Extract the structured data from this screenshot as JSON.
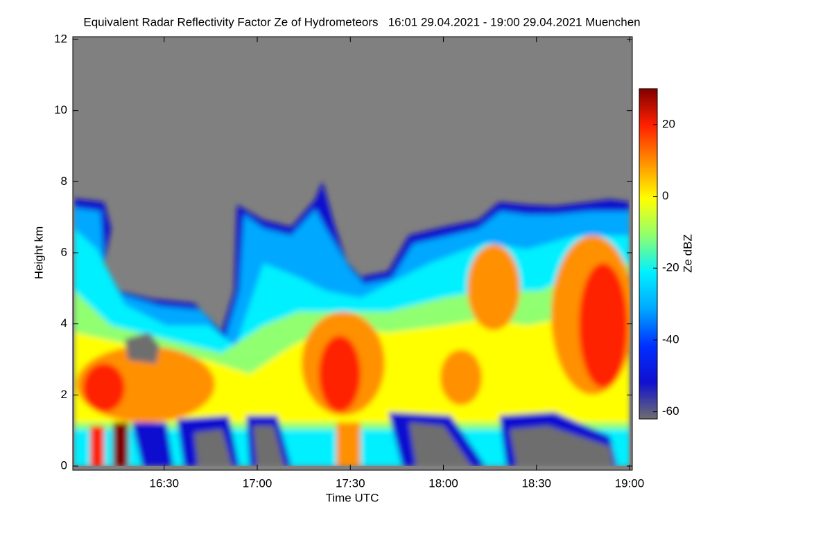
{
  "chart_data": {
    "type": "heatmap",
    "title": "Equivalent Radar Reflectivity Factor Ze of Hydrometeors   16:01 29.04.2021 - 19:00 29.04.2021 Muenchen",
    "xlabel": "Time UTC",
    "ylabel": "Height km",
    "xlim": [
      "16:01",
      "19:00"
    ],
    "xticks": [
      "16:30",
      "17:00",
      "17:30",
      "18:00",
      "18:30",
      "19:00"
    ],
    "ylim": [
      0,
      12
    ],
    "yticks": [
      0,
      2,
      4,
      6,
      8,
      10,
      12
    ],
    "colorbar_label": "Ze dBZ",
    "clim": [
      -62,
      30
    ],
    "cticks": [
      -60,
      -40,
      -20,
      0,
      20
    ],
    "colormap": [
      "#6e6e6e",
      "#1010d0",
      "#0030ff",
      "#00a8ff",
      "#00f0ff",
      "#90ff70",
      "#ffff00",
      "#ff9000",
      "#ff2000",
      "#800000"
    ],
    "missing_color": "#808080"
  }
}
